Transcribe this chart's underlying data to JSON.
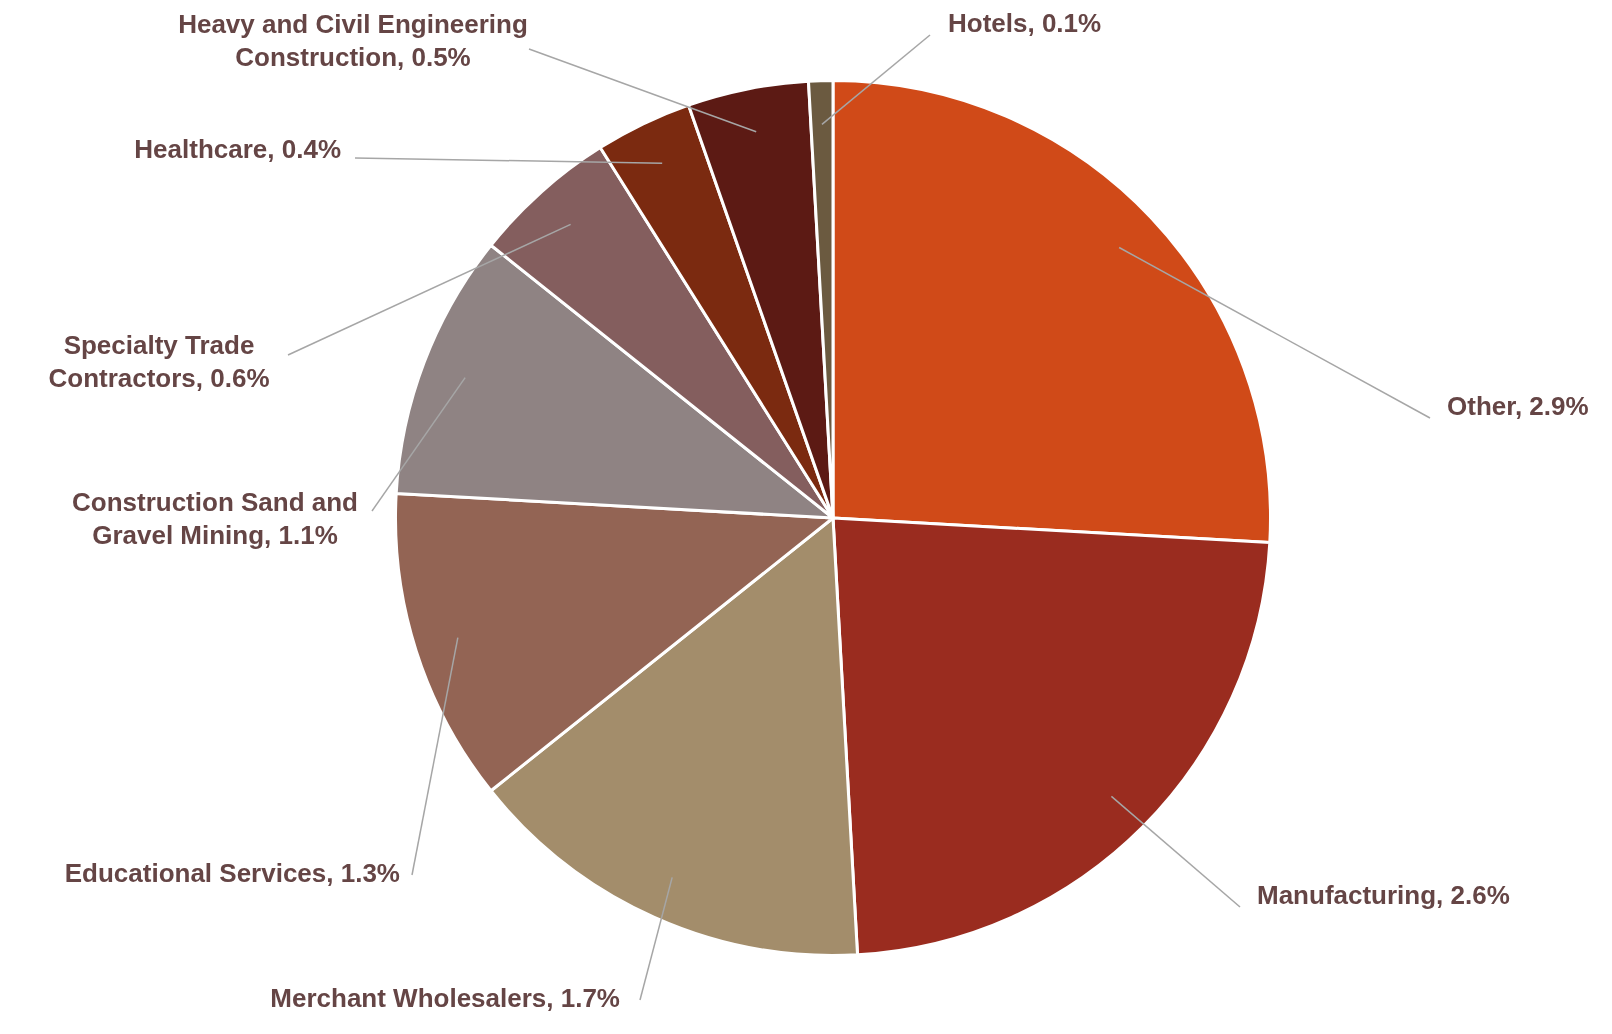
{
  "chart_data": {
    "type": "pie",
    "categories": [
      "Other",
      "Manufacturing",
      "Merchant Wholesalers",
      "Educational Services",
      "Construction Sand and Gravel Mining",
      "Specialty Trade Contractors",
      "Healthcare",
      "Heavy and Civil Engineering Construction",
      "Hotels"
    ],
    "values": [
      2.9,
      2.6,
      1.7,
      1.3,
      1.1,
      0.6,
      0.4,
      0.5,
      0.1
    ],
    "value_labels": [
      "2.9%",
      "2.6%",
      "1.7%",
      "1.3%",
      "1.1%",
      "0.6%",
      "0.4%",
      "0.5%",
      "0.1%"
    ],
    "colors": [
      "#d04a18",
      "#9a2c1f",
      "#a38d6b",
      "#936454",
      "#8f8383",
      "#845e5e",
      "#7b2a10",
      "#5c1a14",
      "#6b5a40"
    ]
  }
}
